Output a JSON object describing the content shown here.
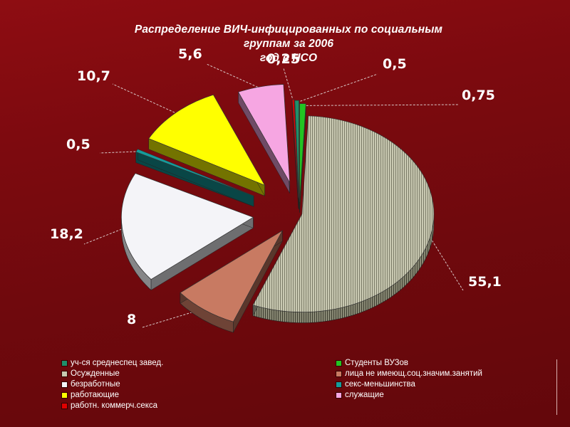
{
  "title_line1": "Распределение ВИЧ-инфицированных по социальным группам за 2006",
  "title_line2": "год в НСО",
  "chart_data": {
    "type": "pie",
    "title": "Распределение ВИЧ-инфицированных по социальным группам за 2006 год в НСО",
    "slices": [
      {
        "label": "Студенты ВУЗов",
        "value": 0.75,
        "color": "#22c422",
        "value_label": "0,75"
      },
      {
        "label": "Осужденные",
        "value": 55.1,
        "color": "#c8c8b0",
        "value_label": "55,1"
      },
      {
        "label": "лица не имеющ.соц.значим.занятий",
        "value": 8,
        "color": "#c87a62",
        "value_label": "8"
      },
      {
        "label": "безработные",
        "value": 18.2,
        "color": "#f4f4f8",
        "value_label": "18,2"
      },
      {
        "label": "секс-меньшинства",
        "value": 0.5,
        "color": "#159c9c",
        "value_label": "0,5"
      },
      {
        "label": "работающие",
        "value": 10.7,
        "color": "#ffff00",
        "value_label": "10,7"
      },
      {
        "label": "служащие",
        "value": 5.6,
        "color": "#f6a6e2",
        "value_label": "5,6"
      },
      {
        "label": "работн. коммерч.секса",
        "value": 0.25,
        "color": "#e00000",
        "value_label": "0,25"
      },
      {
        "label": "уч-ся среднеспец завед.",
        "value": 0.5,
        "color": "#1f8f6a",
        "value_label": "0,5"
      }
    ],
    "legend_placement": "bottom"
  },
  "legend": [
    {
      "label": "уч-ся среднеспец завед.",
      "color": "#1f8f6a"
    },
    {
      "label": "Студенты ВУЗов",
      "color": "#22c422"
    },
    {
      "label": "Осужденные",
      "color": "#c8c8b0"
    },
    {
      "label": "лица не имеющ.соц.значим.занятий",
      "color": "#c87a62"
    },
    {
      "label": "безработные",
      "color": "#f4f4f8"
    },
    {
      "label": "секс-меньшинства",
      "color": "#159c9c"
    },
    {
      "label": "работающие",
      "color": "#ffff00"
    },
    {
      "label": "служащие",
      "color": "#f6a6e2"
    },
    {
      "label": "работн. коммерч.секса",
      "color": "#e00000"
    }
  ]
}
